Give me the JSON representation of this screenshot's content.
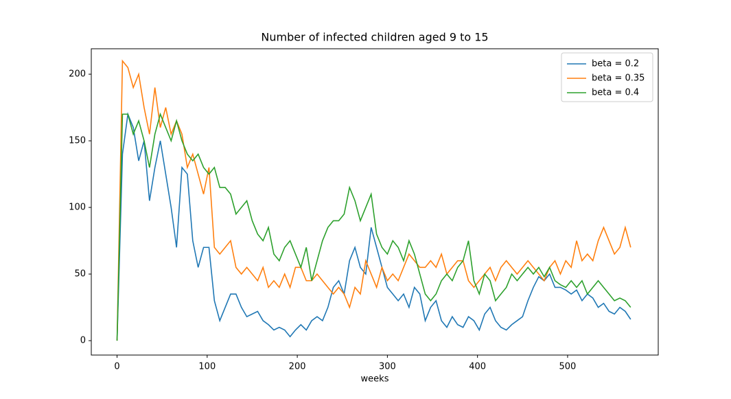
{
  "chart_data": {
    "type": "line",
    "title": "Number of infected children aged 9 to 15",
    "x_label": "weeks",
    "x": [
      0,
      6,
      12,
      18,
      24,
      30,
      36,
      42,
      48,
      54,
      60,
      66,
      72,
      78,
      84,
      90,
      96,
      102,
      108,
      114,
      120,
      126,
      132,
      138,
      144,
      150,
      156,
      162,
      168,
      174,
      180,
      186,
      192,
      198,
      204,
      210,
      216,
      222,
      228,
      234,
      240,
      246,
      252,
      258,
      264,
      270,
      276,
      282,
      288,
      294,
      300,
      306,
      312,
      318,
      324,
      330,
      336,
      342,
      348,
      354,
      360,
      366,
      372,
      378,
      384,
      390,
      396,
      402,
      408,
      414,
      420,
      426,
      432,
      438,
      444,
      450,
      456,
      462,
      468,
      474,
      480,
      486,
      492,
      498,
      504,
      510,
      516,
      522,
      528,
      534,
      540,
      546,
      552,
      558,
      564,
      570
    ],
    "series": [
      {
        "name": "beta = 0.2",
        "color": "#1f77b4",
        "values": [
          0,
          140,
          170,
          160,
          135,
          150,
          105,
          130,
          150,
          125,
          100,
          70,
          130,
          125,
          75,
          55,
          70,
          70,
          30,
          15,
          25,
          35,
          35,
          25,
          18,
          20,
          22,
          15,
          12,
          8,
          10,
          8,
          3,
          8,
          12,
          8,
          15,
          18,
          15,
          25,
          40,
          45,
          35,
          60,
          70,
          55,
          50,
          85,
          70,
          55,
          40,
          35,
          30,
          35,
          25,
          40,
          35,
          15,
          25,
          30,
          15,
          10,
          18,
          12,
          10,
          18,
          15,
          8,
          20,
          25,
          15,
          10,
          8,
          12,
          15,
          18,
          30,
          40,
          48,
          45,
          50,
          40,
          40,
          38,
          35,
          38,
          30,
          35,
          32,
          25,
          28,
          22,
          20,
          25,
          22,
          16
        ]
      },
      {
        "name": "beta = 0.35",
        "color": "#ff7f0e",
        "values": [
          0,
          210,
          205,
          190,
          200,
          175,
          155,
          190,
          160,
          175,
          155,
          165,
          155,
          130,
          140,
          125,
          110,
          130,
          70,
          65,
          70,
          75,
          55,
          50,
          55,
          50,
          45,
          55,
          40,
          45,
          40,
          50,
          40,
          55,
          55,
          45,
          45,
          50,
          45,
          40,
          35,
          40,
          35,
          25,
          40,
          35,
          60,
          50,
          40,
          55,
          45,
          50,
          45,
          55,
          65,
          60,
          55,
          55,
          60,
          55,
          65,
          50,
          55,
          60,
          60,
          45,
          40,
          45,
          50,
          55,
          45,
          55,
          60,
          55,
          50,
          55,
          60,
          55,
          50,
          45,
          55,
          60,
          50,
          60,
          55,
          75,
          60,
          65,
          60,
          75,
          85,
          75,
          65,
          70,
          85,
          70
        ]
      },
      {
        "name": "beta = 0.4",
        "color": "#2ca02c",
        "values": [
          0,
          170,
          170,
          155,
          165,
          150,
          130,
          155,
          170,
          160,
          150,
          165,
          150,
          140,
          135,
          140,
          130,
          125,
          130,
          115,
          115,
          110,
          95,
          100,
          105,
          90,
          80,
          75,
          85,
          65,
          60,
          70,
          75,
          65,
          55,
          70,
          45,
          60,
          75,
          85,
          90,
          90,
          95,
          115,
          105,
          90,
          100,
          110,
          80,
          70,
          65,
          75,
          70,
          60,
          75,
          65,
          50,
          35,
          30,
          35,
          45,
          50,
          45,
          55,
          60,
          75,
          45,
          35,
          50,
          45,
          30,
          35,
          40,
          50,
          45,
          50,
          55,
          50,
          55,
          48,
          55,
          45,
          42,
          40,
          45,
          40,
          45,
          35,
          40,
          45,
          40,
          35,
          30,
          32,
          30,
          25
        ]
      }
    ],
    "xlim": [
      -28.6,
      600.6
    ],
    "ylim": [
      -10.8,
      219.1
    ],
    "xticks": [
      0,
      100,
      200,
      300,
      400,
      500
    ],
    "yticks": [
      0,
      50,
      100,
      150,
      200
    ],
    "legend": "upper right"
  }
}
